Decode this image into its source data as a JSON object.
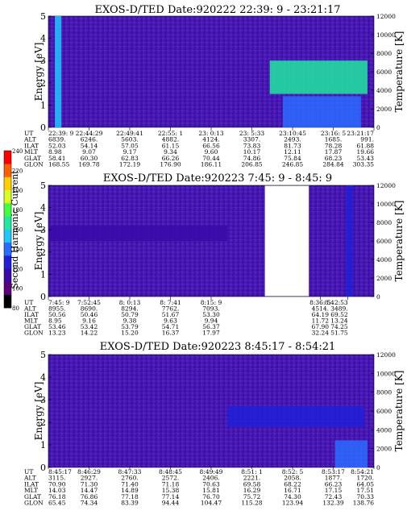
{
  "chart_data": [
    {
      "type": "heatmap",
      "title": "EXOS-D/TED  Date:920222  22:39: 9 - 23:21:17",
      "ylabel": "Energy [eV]",
      "ylabel2": "Temperature [K]",
      "ylim": [
        0,
        5
      ],
      "ylim2": [
        0,
        12000
      ],
      "yticks": [
        "0",
        "1",
        "2",
        "3",
        "4",
        "5"
      ],
      "yticks2": [
        "0",
        "2000",
        "4000",
        "6000",
        "8000",
        "10000",
        "12000"
      ],
      "row_labels": [
        "UT",
        "ALT",
        "ILAT",
        "MLT",
        "GLAT",
        "GLON"
      ],
      "columns": [
        [
          "22:39: 9",
          "6839.",
          "52.03",
          "8.98",
          "58.41",
          "168.55"
        ],
        [
          "22:44:29",
          "6246.",
          "54.14",
          "9.07",
          "60.30",
          "169.78"
        ],
        [
          "22:49:41",
          "5603.",
          "57.05",
          "9.17",
          "62.83",
          "172.19"
        ],
        [
          "22:55: 1",
          "4882.",
          "61.15",
          "9.34",
          "66.26",
          "176.90"
        ],
        [
          "23: 0:13",
          "4124.",
          "66.56",
          "9.60",
          "70.44",
          "186.11"
        ],
        [
          "23: 5:33",
          "3307.",
          "73.83",
          "10.17",
          "74.86",
          "206.85"
        ],
        [
          "23:10:45",
          "2493.",
          "81.73",
          "12.11",
          "75.84",
          "246.85"
        ],
        [
          "23:16: 5",
          "1685.",
          "78.28",
          "17.87",
          "68.23",
          "284.84"
        ],
        [
          "23:21:17",
          "991.",
          "61.88",
          "19.66",
          "53.43",
          "303.35"
        ]
      ],
      "features": [
        {
          "x_start": 0.02,
          "x_end": 0.04,
          "y_from": 0.0,
          "y_to": 5.0,
          "level": 150
        },
        {
          "x_start": 0.68,
          "x_end": 0.98,
          "y_from": 1.5,
          "y_to": 3.0,
          "level": 170
        },
        {
          "x_start": 0.72,
          "x_end": 0.96,
          "y_from": 0.0,
          "y_to": 1.4,
          "level": 140
        }
      ]
    },
    {
      "type": "heatmap",
      "title": "EXOS-D/TED  Date:920223  7:45: 9 - 8:45: 9",
      "ylabel": "Energy [eV]",
      "ylabel2": "Temperature [K]",
      "ylim": [
        0,
        5
      ],
      "ylim2": [
        0,
        12000
      ],
      "yticks": [
        "0",
        "1",
        "2",
        "3",
        "4",
        "5"
      ],
      "yticks2": [
        "0",
        "2000",
        "4000",
        "6000",
        "8000",
        "10000",
        "12000"
      ],
      "row_labels": [
        "UT",
        "ALT",
        "ILAT",
        "MLT",
        "GLAT",
        "GLON"
      ],
      "columns": [
        [
          "7:45: 9",
          "8955.",
          "50.56",
          "8.95",
          "53.46",
          "13.23"
        ],
        [
          "7:52:45",
          "8690.",
          "50.46",
          "9.16",
          "53.42",
          "14.22"
        ],
        [
          "8: 0:13",
          "8294.",
          "50.79",
          "9.38",
          "53.79",
          "15.20"
        ],
        [
          "8: 7:41",
          "7762.",
          "51.67",
          "9.63",
          "54.71",
          "16.37"
        ],
        [
          "8:15: 9",
          "7093.",
          "53.30",
          "9.94",
          "56.37",
          "17.97"
        ],
        [
          "8:36: 5",
          "4514.",
          "64.19",
          "11.72",
          "67.90",
          "32.24"
        ],
        [
          "8:42:53",
          "3489.",
          "69.52",
          "13.24",
          "74.25",
          "51.75"
        ]
      ],
      "gaps": [
        [
          0.665,
          0.8
        ]
      ],
      "features": [
        {
          "x_start": 0.0,
          "x_end": 0.55,
          "y_from": 2.5,
          "y_to": 3.2,
          "level": 110
        },
        {
          "x_start": 0.915,
          "x_end": 0.935,
          "y_from": 0.0,
          "y_to": 5.0,
          "level": 120
        }
      ]
    },
    {
      "type": "heatmap",
      "title": "EXOS-D/TED  Date:920223  8:45:17 - 8:54:21",
      "ylabel": "Energy [eV]",
      "ylabel2": "Temperature [K]",
      "ylim": [
        0,
        5
      ],
      "ylim2": [
        0,
        12000
      ],
      "yticks": [
        "0",
        "1",
        "2",
        "3",
        "4",
        "5"
      ],
      "yticks2": [
        "0",
        "2000",
        "4000",
        "6000",
        "8000",
        "10000",
        "12000"
      ],
      "row_labels": [
        "UT",
        "ALT",
        "ILAT",
        "MLT",
        "GLAT",
        "GLON"
      ],
      "columns": [
        [
          "8:45:17",
          "3115.",
          "70.90",
          "14.03",
          "76.18",
          "65.45"
        ],
        [
          "8:46:29",
          "2927.",
          "71.30",
          "14.47",
          "76.86",
          "74.34"
        ],
        [
          "8:47:33",
          "2760.",
          "71.40",
          "14.89",
          "77.18",
          "83.39"
        ],
        [
          "8:48:45",
          "2572.",
          "71.18",
          "15.38",
          "77.14",
          "94.44"
        ],
        [
          "8:49:49",
          "2406.",
          "70.63",
          "15.81",
          "76.70",
          "104.47"
        ],
        [
          "8:51: 1",
          "2221.",
          "69.58",
          "16.29",
          "75.72",
          "115.28"
        ],
        [
          "8:52: 5",
          "2058.",
          "68.22",
          "16.71",
          "74.30",
          "123.94"
        ],
        [
          "8:53:17",
          "1877.",
          "66.23",
          "17.15",
          "72.43",
          "132.39"
        ],
        [
          "8:54:21",
          "1720.",
          "64.05",
          "17.51",
          "70.33",
          "138.76"
        ]
      ],
      "features": [
        {
          "x_start": 0.55,
          "x_end": 0.97,
          "y_from": 1.8,
          "y_to": 2.7,
          "level": 120
        },
        {
          "x_start": 0.88,
          "x_end": 0.98,
          "y_from": 0.0,
          "y_to": 1.2,
          "level": 140
        }
      ]
    }
  ],
  "colorbar": {
    "label": "Second Harmonic Current",
    "min": 80,
    "max": 240,
    "ticks": [
      "80",
      "100",
      "120",
      "140",
      "160",
      "180",
      "200",
      "220",
      "240"
    ],
    "colors": [
      "#000000",
      "#5a007a",
      "#3a0aa8",
      "#2020d8",
      "#2a6cff",
      "#20c8ff",
      "#20e8a0",
      "#40ff40",
      "#d8ff20",
      "#ffd000",
      "#ff6000",
      "#ff0000"
    ]
  }
}
